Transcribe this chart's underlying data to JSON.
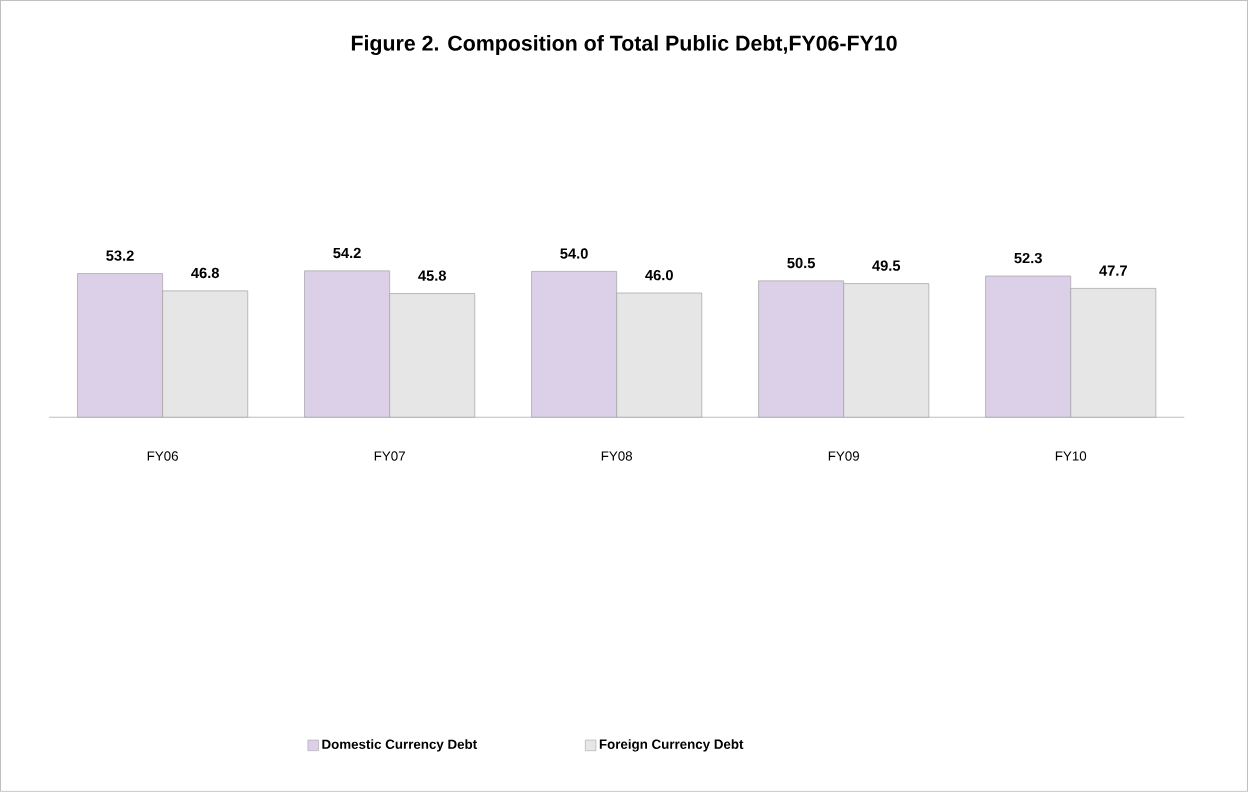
{
  "chart_data": {
    "type": "bar",
    "title": "Figure 2. Composition of Total Public Debt,FY06-FY10",
    "categories": [
      "FY06",
      "FY07",
      "FY08",
      "FY09",
      "FY10"
    ],
    "series": [
      {
        "name": "Domestic Currency Debt",
        "color": "#dcd0e8",
        "values": [
          53.2,
          54.2,
          54.0,
          50.5,
          52.3
        ],
        "value_labels": [
          "53.2",
          "54.2",
          "54.0",
          "50.5",
          "52.3"
        ]
      },
      {
        "name": "Foreign Currency Debt",
        "color": "#e6e6e6",
        "values": [
          46.8,
          45.8,
          46.0,
          49.5,
          47.7
        ],
        "value_labels": [
          "46.8",
          "45.8",
          "46.0",
          "49.5",
          "47.7"
        ]
      }
    ],
    "legend": "bottom"
  }
}
